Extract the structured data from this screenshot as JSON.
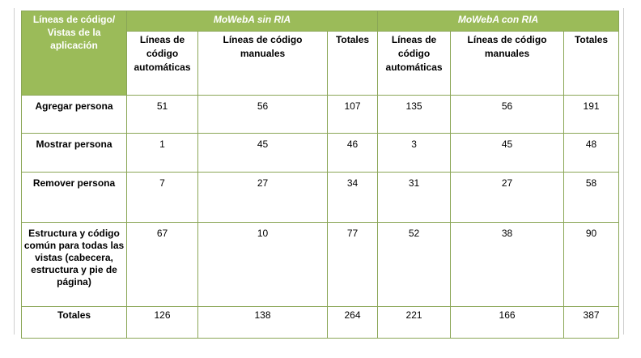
{
  "header": {
    "corner": "Líneas de código/ Vistas de la aplicación",
    "group1": "MoWebA sin RIA",
    "group2": "MoWebA con RIA",
    "sub": [
      "Líneas de código automáticas",
      "Líneas de código manuales",
      "Totales",
      "Líneas de código automáticas",
      "Líneas de código manuales",
      "Totales"
    ]
  },
  "rows": [
    {
      "label": "Agregar persona",
      "values": [
        "51",
        "56",
        "107",
        "135",
        "56",
        "191"
      ]
    },
    {
      "label": "Mostrar persona",
      "values": [
        "1",
        "45",
        "46",
        "3",
        "45",
        "48"
      ]
    },
    {
      "label": "Remover persona",
      "values": [
        "7",
        "27",
        "34",
        "31",
        "27",
        "58"
      ]
    },
    {
      "label": "Estructura y código común para todas las vistas (cabecera, estructura y pie de página)",
      "values": [
        "67",
        "10",
        "77",
        "52",
        "38",
        "90"
      ]
    },
    {
      "label": "Totales",
      "values": [
        "126",
        "138",
        "264",
        "221",
        "166",
        "387"
      ]
    }
  ],
  "colors": {
    "header_bg": "#9bbb59",
    "border": "#8aa656"
  }
}
